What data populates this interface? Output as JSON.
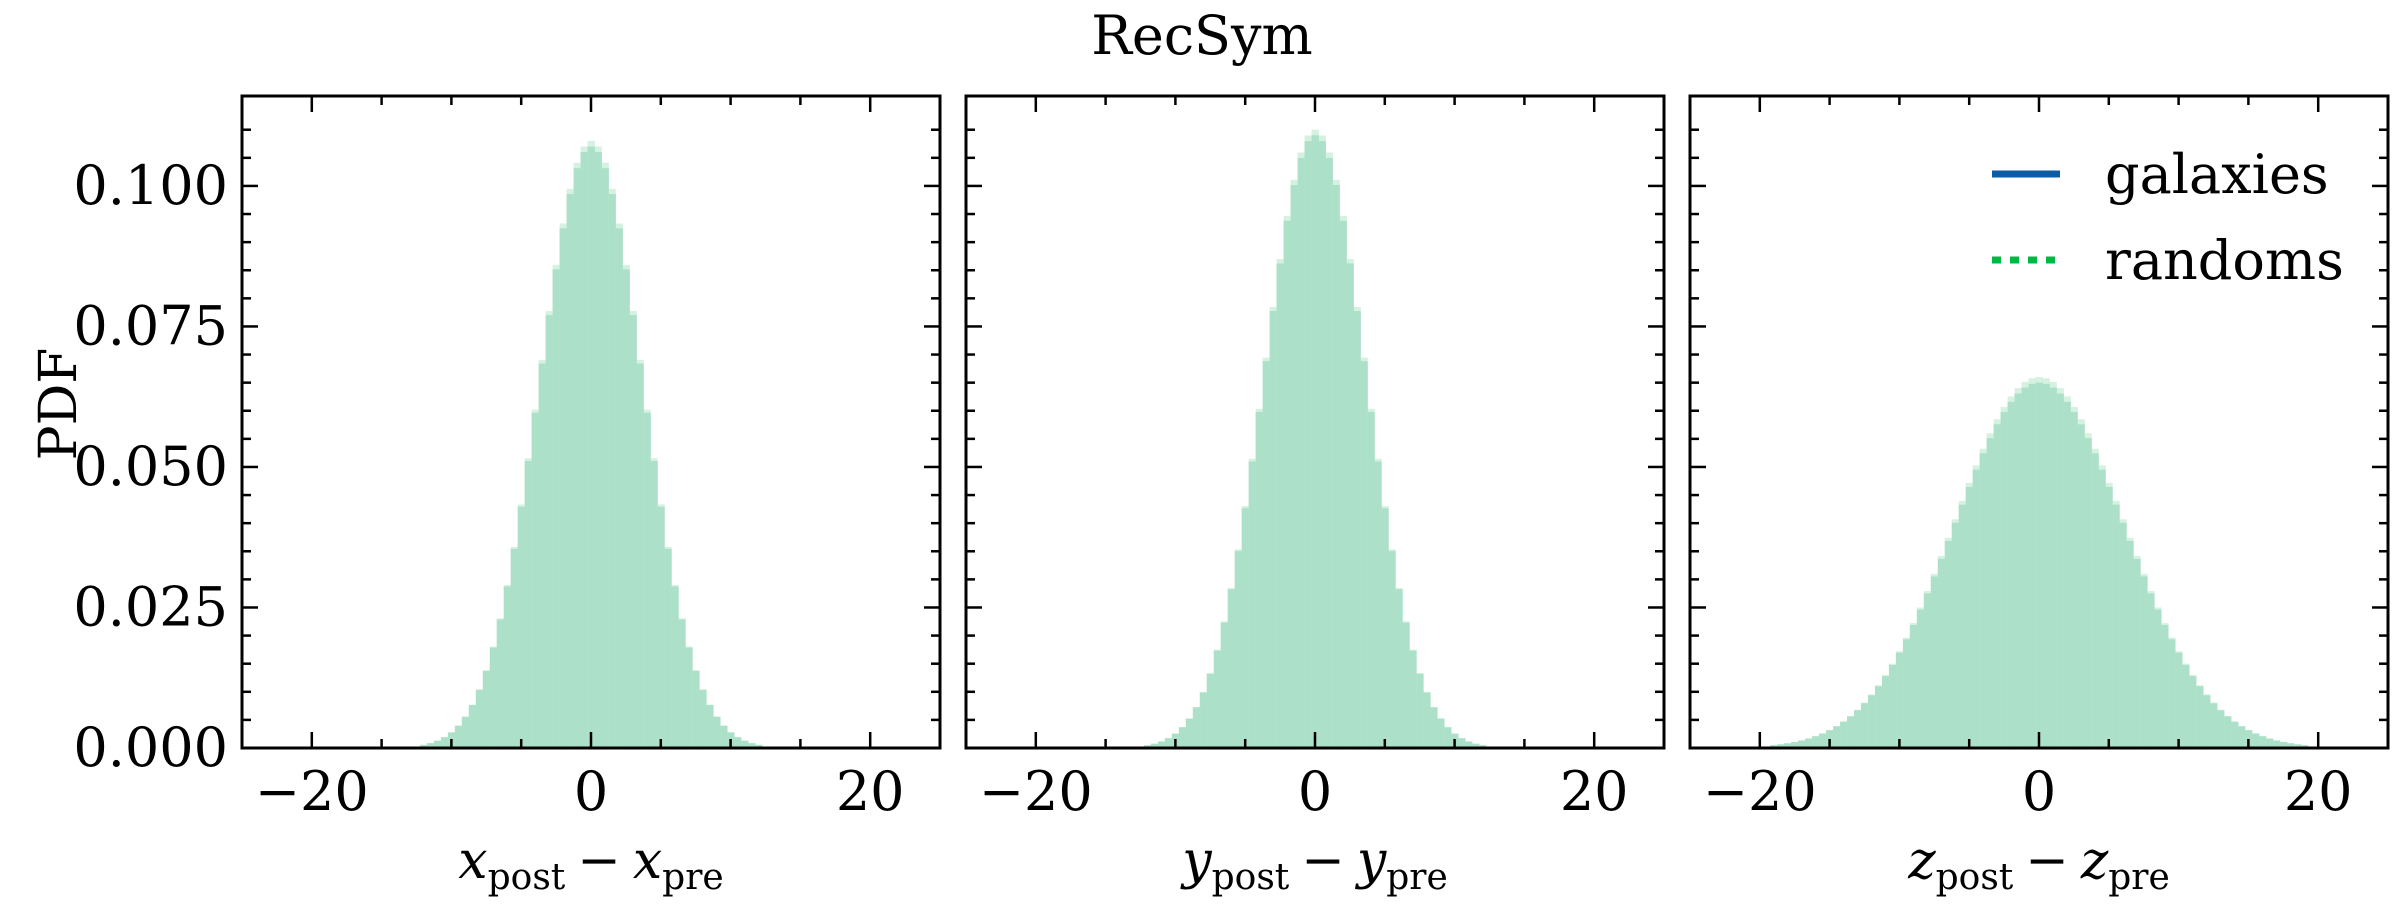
{
  "figure": {
    "title": "RecSym",
    "colors": {
      "galaxies": "#0C5DA5",
      "randoms": "#00B945",
      "fill": "#A7D8CA",
      "fill_edge": "#B3E8C8"
    }
  },
  "chart_data": [
    {
      "type": "bar",
      "histogram": true,
      "title": "",
      "ylabel": "PDF",
      "xlabel": {
        "var": "x",
        "sub1": "post",
        "minus": "−",
        "sub2": "pre"
      },
      "xlim": [
        -25,
        25
      ],
      "ylim": [
        0,
        0.116
      ],
      "xticks": [
        -20,
        0,
        20
      ],
      "xtick_labels": [
        "−20",
        "0",
        "20"
      ],
      "yticks": [
        0,
        0.025,
        0.05,
        0.075,
        0.1
      ],
      "ytick_labels": [
        "0.000",
        "0.025",
        "0.050",
        "0.075",
        "0.100"
      ],
      "series": [
        {
          "name": "galaxies",
          "distribution": "normal",
          "mean": 0,
          "std": 3.7,
          "peak_pdf": 0.107
        },
        {
          "name": "randoms",
          "distribution": "normal",
          "mean": 0,
          "std": 3.7,
          "peak_pdf": 0.108
        }
      ]
    },
    {
      "type": "bar",
      "histogram": true,
      "title": "",
      "ylabel": "",
      "xlabel": {
        "var": "y",
        "sub1": "post",
        "minus": "−",
        "sub2": "pre"
      },
      "xlim": [
        -25,
        25
      ],
      "ylim": [
        0,
        0.116
      ],
      "xticks": [
        -20,
        0,
        20
      ],
      "xtick_labels": [
        "−20",
        "0",
        "20"
      ],
      "yticks": [
        0,
        0.025,
        0.05,
        0.075,
        0.1
      ],
      "ytick_labels": [
        "",
        "",
        "",
        "",
        ""
      ],
      "series": [
        {
          "name": "galaxies",
          "distribution": "normal",
          "mean": 0,
          "std": 3.65,
          "peak_pdf": 0.109
        },
        {
          "name": "randoms",
          "distribution": "normal",
          "mean": 0,
          "std": 3.65,
          "peak_pdf": 0.11
        }
      ]
    },
    {
      "type": "bar",
      "histogram": true,
      "title": "",
      "ylabel": "",
      "xlabel": {
        "var": "z",
        "sub1": "post",
        "minus": "−",
        "sub2": "pre"
      },
      "xlim": [
        -25,
        25
      ],
      "ylim": [
        0,
        0.116
      ],
      "xticks": [
        -20,
        0,
        20
      ],
      "xtick_labels": [
        "−20",
        "0",
        "20"
      ],
      "yticks": [
        0,
        0.025,
        0.05,
        0.075,
        0.1
      ],
      "ytick_labels": [
        "",
        "",
        "",
        "",
        ""
      ],
      "legend": {
        "placement": "top-right",
        "entries": [
          {
            "label": "galaxies",
            "style": "solid"
          },
          {
            "label": "randoms",
            "style": "dotted"
          }
        ]
      },
      "series": [
        {
          "name": "galaxies",
          "distribution": "normal",
          "mean": 0,
          "std": 6.1,
          "peak_pdf": 0.065
        },
        {
          "name": "randoms",
          "distribution": "normal",
          "mean": 0,
          "std": 6.1,
          "peak_pdf": 0.066
        }
      ]
    }
  ]
}
